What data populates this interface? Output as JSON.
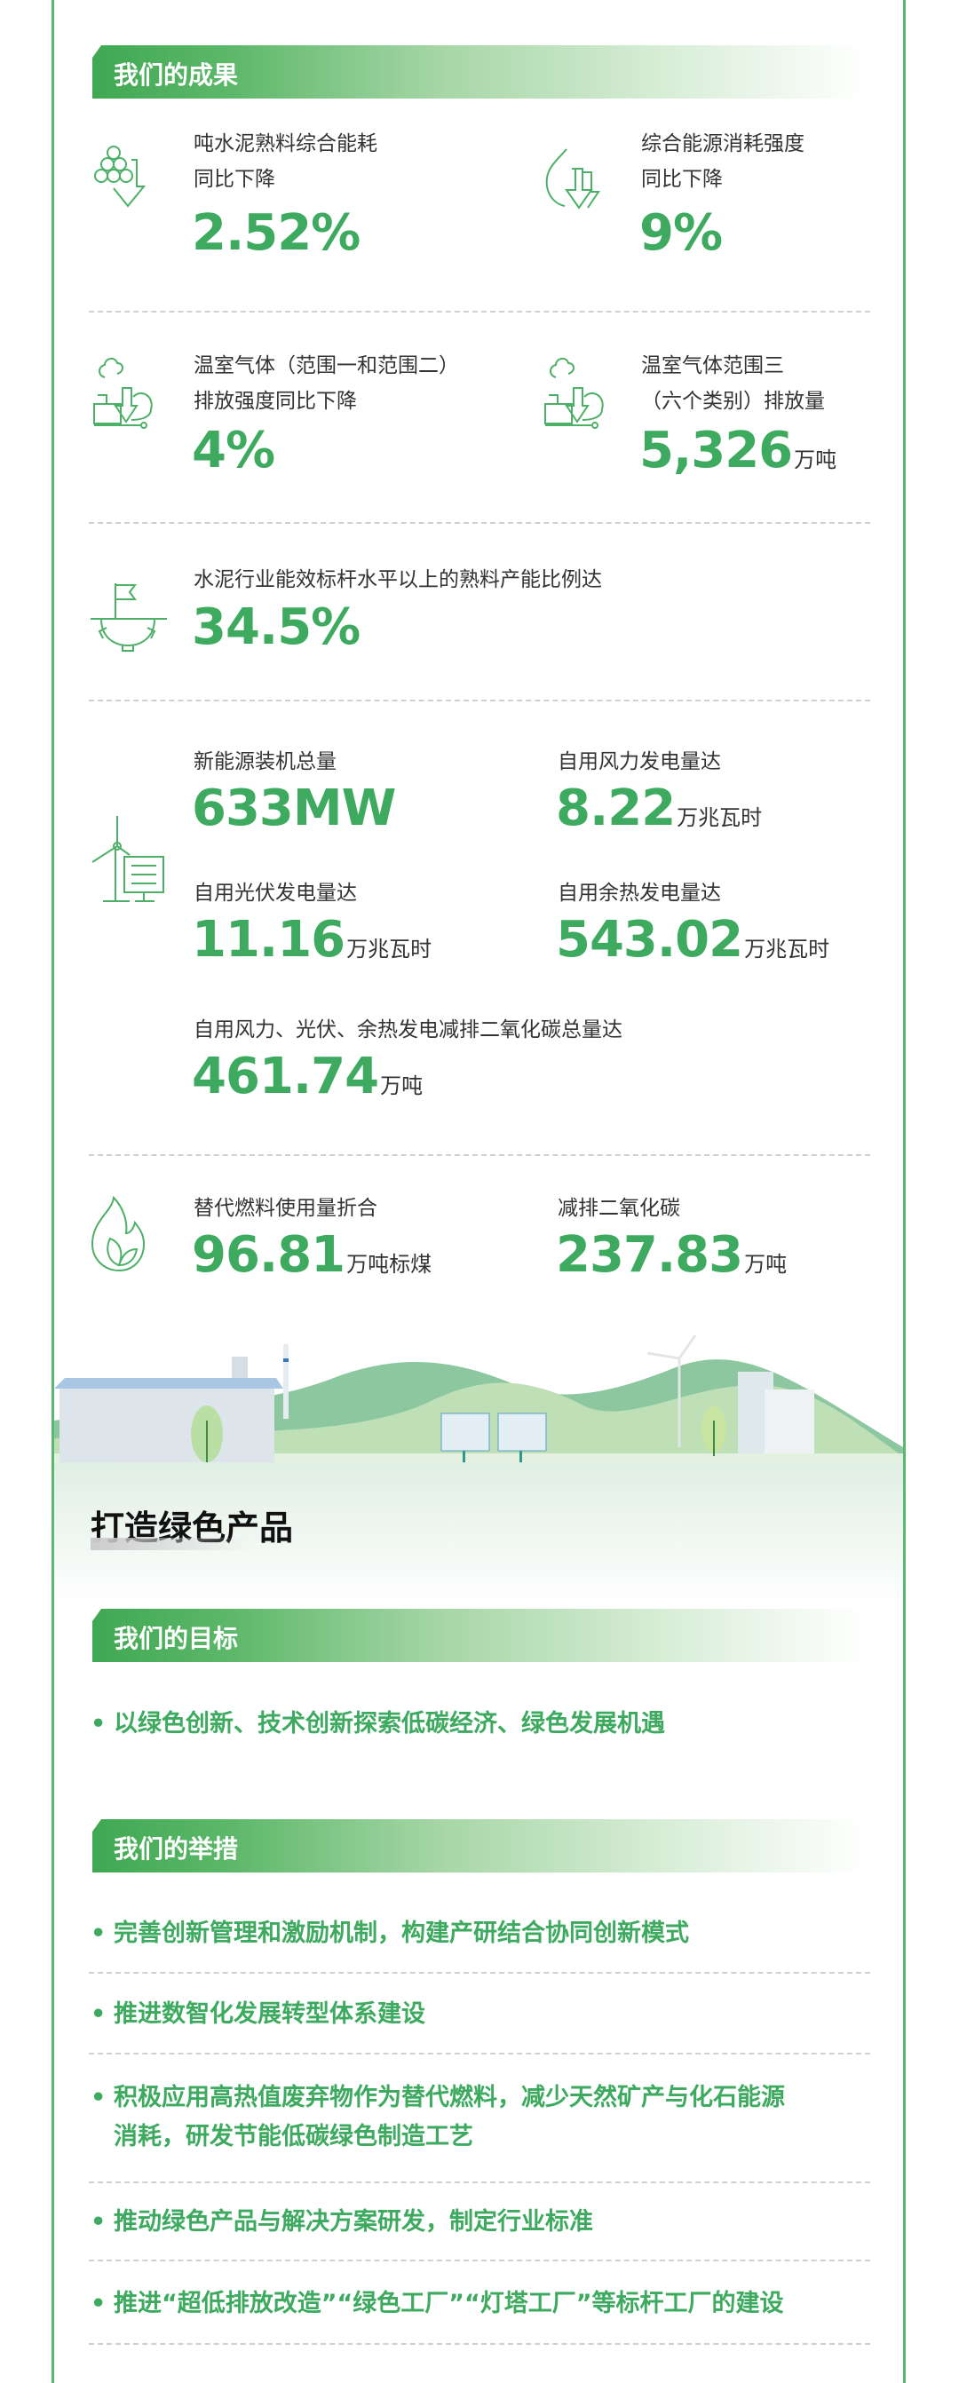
{
  "colors": {
    "accent": "#3daa5f",
    "frame": "#5cb870",
    "text": "#333333"
  },
  "achievements": {
    "header": "我们的成果",
    "items": [
      {
        "icon": "stacked-circles-down-arrow-icon",
        "label1": "吨水泥熟料综合能耗",
        "label2": "同比下降",
        "value": "2.52%",
        "unit": ""
      },
      {
        "icon": "flame-down-arrow-icon",
        "label1": "综合能源消耗强度",
        "label2": "同比下降",
        "value": "9%",
        "unit": ""
      },
      {
        "icon": "factory-smoke-cloud-icon",
        "label1": "温室气体（范围一和范围二）",
        "label2": "排放强度同比下降",
        "value": "4%",
        "unit": ""
      },
      {
        "icon": "factory-smoke-cloud-icon",
        "label1": "温室气体范围三",
        "label2": "（六个类别）排放量",
        "value": "5,326",
        "unit": "万吨"
      },
      {
        "icon": "flag-gear-icon",
        "label1": "水泥行业能效标杆水平以上的熟料产能比例达",
        "value": "34.5%",
        "unit": ""
      },
      {
        "icon": "wind-solar-icon",
        "label1": "新能源装机总量",
        "value": "633MW",
        "unit": ""
      },
      {
        "label1": "自用风力发电量达",
        "value": "8.22",
        "unit": "万兆瓦时"
      },
      {
        "label1": "自用光伏发电量达",
        "value": "11.16",
        "unit": "万兆瓦时"
      },
      {
        "label1": "自用余热发电量达",
        "value": "543.02",
        "unit": "万兆瓦时"
      },
      {
        "label1": "自用风力、光伏、余热发电减排二氧化碳总量达",
        "value": "461.74",
        "unit": "万吨"
      },
      {
        "icon": "flame-leaf-icon",
        "label1": "替代燃料使用量折合",
        "value": "96.81",
        "unit": "万吨标煤"
      },
      {
        "label1": "减排二氧化碳",
        "value": "237.83",
        "unit": "万吨"
      }
    ]
  },
  "green_products": {
    "title": "打造绿色产品",
    "goal_header": "我们的目标",
    "goal": "以绿色创新、技术创新探索低碳经济、绿色发展机遇",
    "measures_header": "我们的举措",
    "bullet": "•",
    "measures": [
      "完善创新管理和激励机制，构建产研结合协同创新模式",
      "推进数智化发展转型体系建设",
      "积极应用高热值废弃物作为替代燃料，减少天然矿产与化石能源消耗，研发节能低碳绿色制造工艺",
      "推动绿色产品与解决方案研发，制定行业标准",
      "推进“超低排放改造”“绿色工厂”“灯塔工厂”等标杆工厂的建设"
    ]
  }
}
